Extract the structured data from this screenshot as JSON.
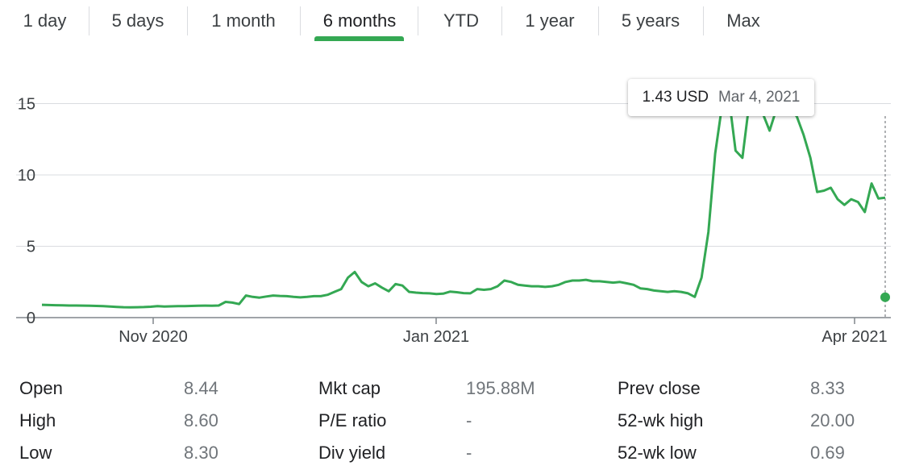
{
  "range_tabs": [
    {
      "label": "1 day"
    },
    {
      "label": "5 days"
    },
    {
      "label": "1 month"
    },
    {
      "label": "6 months",
      "selected": true
    },
    {
      "label": "YTD"
    },
    {
      "label": "1 year"
    },
    {
      "label": "5 years"
    },
    {
      "label": "Max"
    }
  ],
  "tooltip": {
    "price": "1.43 USD",
    "date": "Mar 4, 2021"
  },
  "colors": {
    "line": "#34a853",
    "accent": "#34a853",
    "grid": "#dadce0",
    "text": "#3c4043",
    "muted": "#70757a"
  },
  "chart_data": {
    "type": "area",
    "x_tick_labels": [
      "Nov 2020",
      "Jan 2021",
      "Apr 2021"
    ],
    "y_ticks": [
      0,
      5,
      10,
      15
    ],
    "ylim": [
      0,
      17
    ],
    "grid": true,
    "highlighted_point": {
      "date": "Mar 4, 2021",
      "value": 1.43
    },
    "series": [
      {
        "values": [
          0.9,
          0.88,
          0.87,
          0.86,
          0.85,
          0.85,
          0.84,
          0.83,
          0.82,
          0.8,
          0.78,
          0.75,
          0.73,
          0.72,
          0.73,
          0.74,
          0.76,
          0.8,
          0.78,
          0.79,
          0.8,
          0.81,
          0.82,
          0.83,
          0.84,
          0.83,
          0.85,
          1.1,
          1.05,
          0.95,
          1.55,
          1.45,
          1.4,
          1.48,
          1.55,
          1.52,
          1.5,
          1.45,
          1.42,
          1.45,
          1.5,
          1.5,
          1.6,
          1.8,
          2.0,
          2.8,
          3.2,
          2.5,
          2.2,
          2.4,
          2.1,
          1.85,
          2.35,
          2.25,
          1.8,
          1.75,
          1.72,
          1.7,
          1.65,
          1.68,
          1.82,
          1.78,
          1.72,
          1.7,
          2.0,
          1.95,
          2.0,
          2.2,
          2.6,
          2.5,
          2.3,
          2.25,
          2.2,
          2.2,
          2.15,
          2.2,
          2.3,
          2.5,
          2.6,
          2.6,
          2.65,
          2.55,
          2.55,
          2.5,
          2.45,
          2.5,
          2.4,
          2.3,
          2.05,
          2.0,
          1.9,
          1.85,
          1.8,
          1.85,
          1.8,
          1.7,
          1.45,
          2.8,
          6.0,
          11.5,
          14.8,
          15.5,
          11.7,
          11.2,
          15.0,
          14.5,
          14.3,
          13.1,
          14.6,
          14.4,
          14.6,
          14.1,
          12.8,
          11.2,
          8.8,
          8.9,
          9.1,
          8.3,
          7.9,
          8.3,
          8.1,
          7.4,
          9.4,
          8.35,
          8.4
        ]
      }
    ]
  },
  "stats": [
    [
      {
        "label": "Open",
        "value": "8.44"
      },
      {
        "label": "Mkt cap",
        "value": "195.88M"
      },
      {
        "label": "Prev close",
        "value": "8.33"
      }
    ],
    [
      {
        "label": "High",
        "value": "8.60"
      },
      {
        "label": "P/E ratio",
        "value": "-"
      },
      {
        "label": "52-wk high",
        "value": "20.00"
      }
    ],
    [
      {
        "label": "Low",
        "value": "8.30"
      },
      {
        "label": "Div yield",
        "value": "-"
      },
      {
        "label": "52-wk low",
        "value": "0.69"
      }
    ]
  ]
}
